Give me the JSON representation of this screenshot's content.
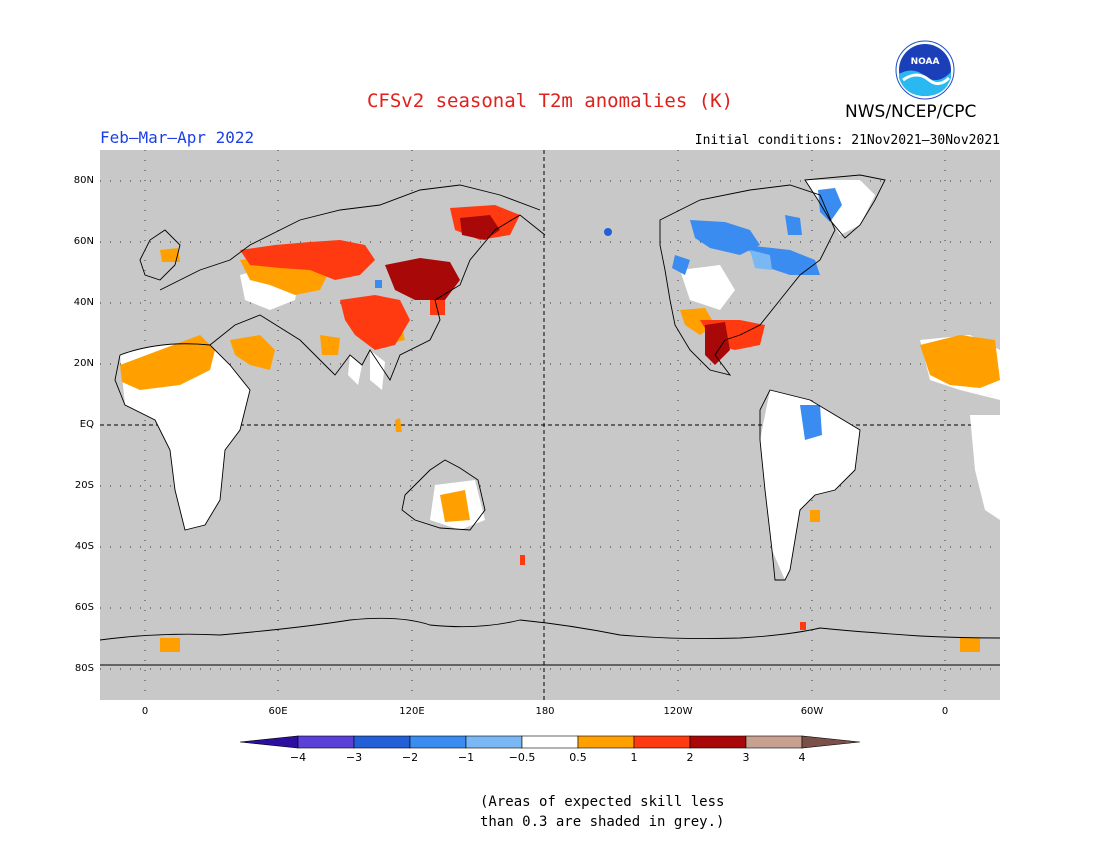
{
  "header": {
    "title": "CFSv2 seasonal T2m anomalies (K)",
    "org": "NWS/NCEP/CPC",
    "period": "Feb–Mar–Apr 2022",
    "init": "Initial conditions: 21Nov2021–30Nov2021",
    "logo_text": "NOAA"
  },
  "axes": {
    "lat_labels": [
      "80N",
      "60N",
      "40N",
      "20N",
      "EQ",
      "20S",
      "40S",
      "60S",
      "80S"
    ],
    "lon_labels": [
      "0",
      "60E",
      "120E",
      "180",
      "120W",
      "60W",
      "0"
    ]
  },
  "colorbar": {
    "tick_labels": [
      "−4",
      "−3",
      "−2",
      "−1",
      "−0.5",
      "0.5",
      "1",
      "2",
      "3",
      "4"
    ],
    "colors": [
      "#2c0fa0",
      "#5a3fd8",
      "#2360d8",
      "#3a8cf0",
      "#7ab8f5",
      "#ffffff",
      "#ffa000",
      "#ff3a10",
      "#a80808",
      "#c8a090",
      "#7a5048"
    ]
  },
  "note": {
    "line1": "(Areas of expected skill less",
    "line2": "than 0.3 are shaded in grey.)"
  },
  "legend_colors": {
    "grey": "#c8c8c8",
    "title": "#e0201c",
    "period": "#1c3fe8"
  }
}
